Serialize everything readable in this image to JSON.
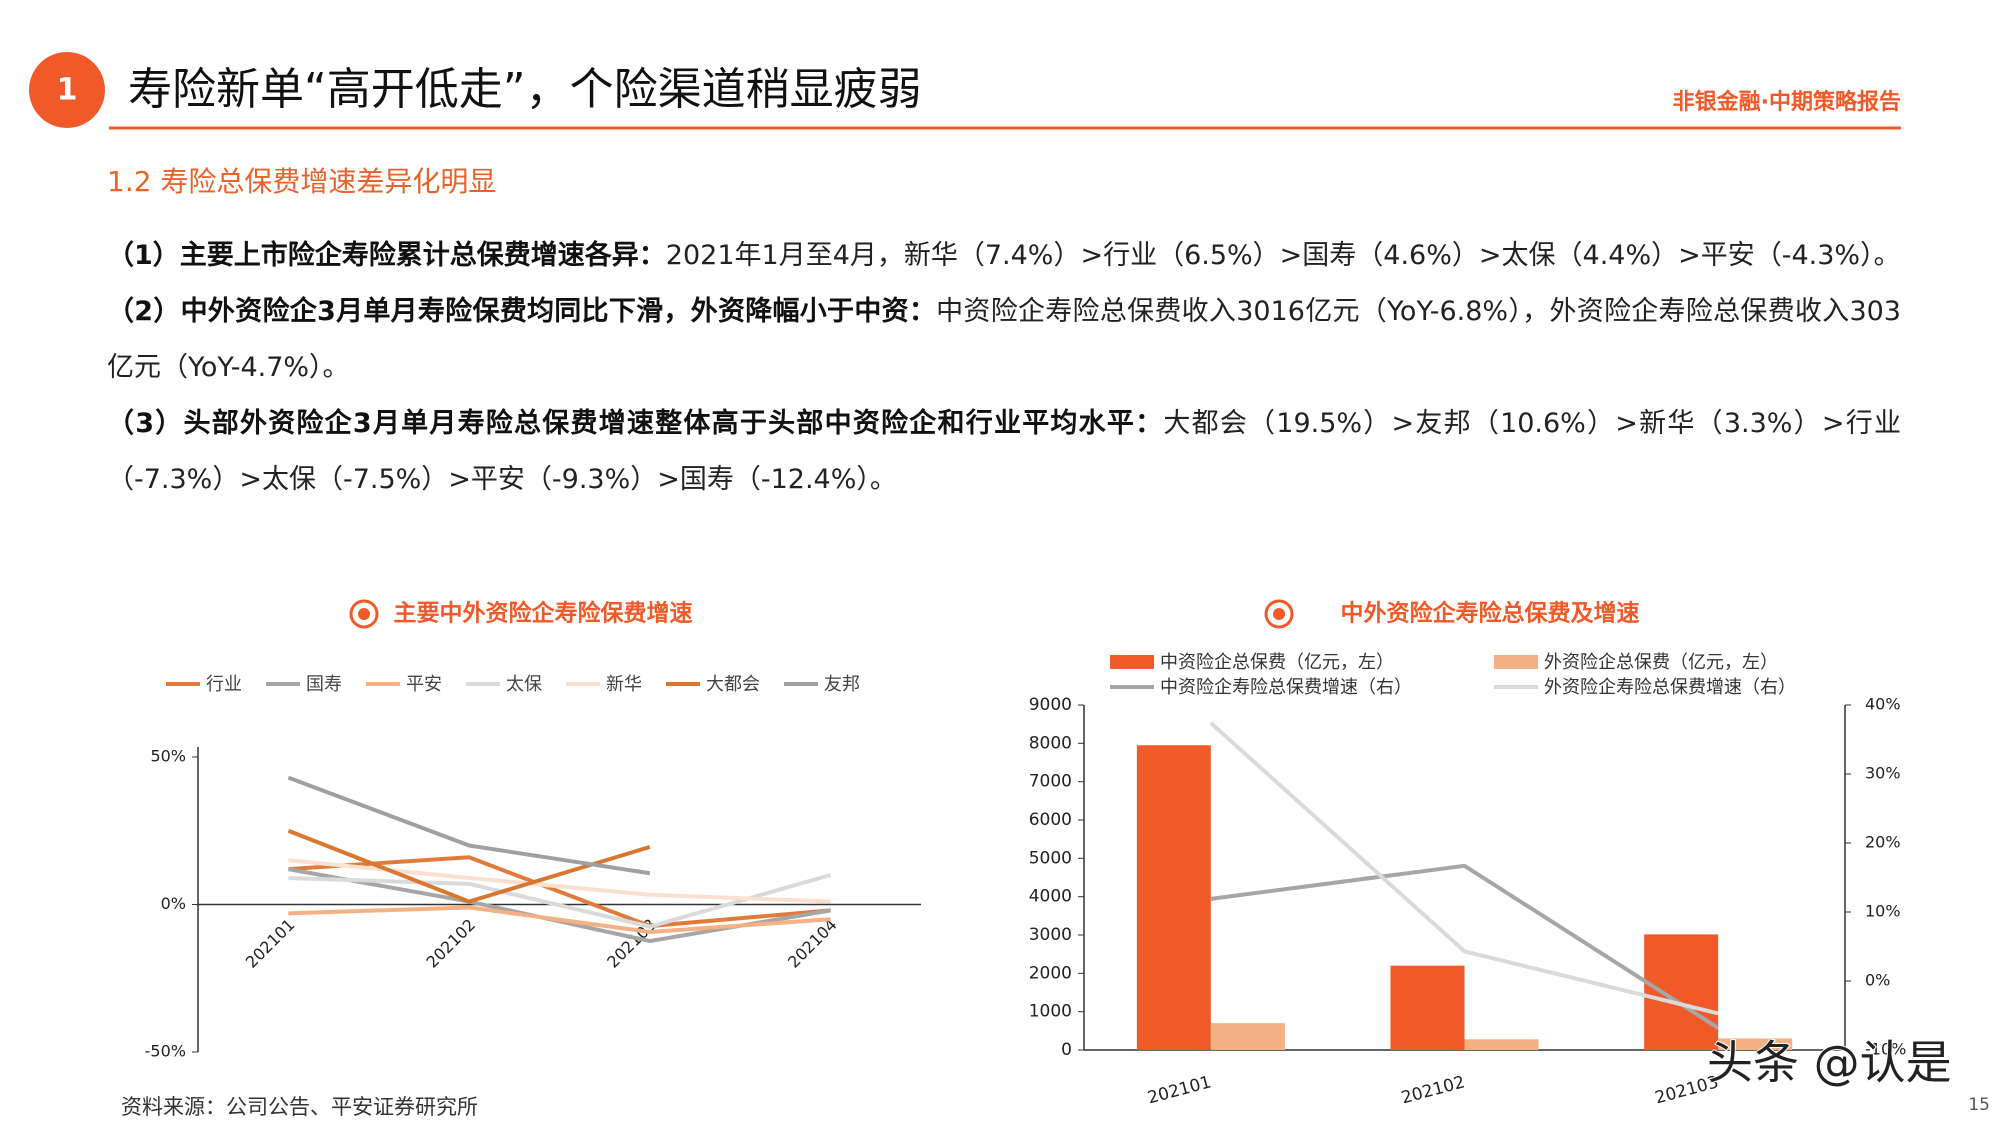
{
  "header": {
    "badge": "1",
    "title": "寿险新单“高开低走”，个险渠道稍显疲弱",
    "report": "非银金融·中期策略报告"
  },
  "section": "1.2 寿险总保费增速差异化明显",
  "paragraphs": [
    {
      "lead": "（1）主要上市险企寿险累计总保费增速各异：",
      "body": "2021年1月至4月，新华（7.4%）>行业（6.5%）>国寿（4.6%）>太保（4.4%）>平安（-4.3%）。"
    },
    {
      "lead": "（2）中外资险企3月单月寿险保费均同比下滑，外资降幅小于中资：",
      "body": "中资险企寿险总保费收入3016亿元（YoY-6.8%），外资险企寿险总保费收入303亿元（YoY-4.7%）。"
    },
    {
      "lead": "（3）头部外资险企3月单月寿险总保费增速整体高于头部中资险企和行业平均水平：",
      "body": "大都会（19.5%）>友邦（10.6%）>新华（3.3%）>行业（-7.3%）>太保（-7.5%）>平安（-9.3%）>国寿（-12.4%）。"
    }
  ],
  "chart_data": [
    {
      "type": "line",
      "title": "主要中外资险企寿险保费增速",
      "categories": [
        "202101",
        "202102",
        "202103",
        "202104"
      ],
      "series": [
        {
          "name": "行业",
          "color": "#e07b39",
          "values": [
            12,
            16,
            -7.3,
            -2
          ]
        },
        {
          "name": "国寿",
          "color": "#a6a6a6",
          "values": [
            12,
            1,
            -12.4,
            -2
          ]
        },
        {
          "name": "平安",
          "color": "#f4b183",
          "values": [
            -3,
            -1,
            -9.3,
            -5
          ]
        },
        {
          "name": "太保",
          "color": "#dadada",
          "values": [
            9,
            7,
            -7.5,
            10
          ]
        },
        {
          "name": "新华",
          "color": "#fbe0cf",
          "values": [
            15,
            9,
            3.3,
            1
          ]
        },
        {
          "name": "大都会",
          "color": "#d9772f",
          "values": [
            25,
            1,
            19.5,
            null
          ]
        },
        {
          "name": "友邦",
          "color": "#a0a0a0",
          "values": [
            43,
            20,
            10.6,
            null
          ]
        }
      ],
      "ylim": [
        -50,
        50
      ],
      "yticks": [
        {
          "value": -50,
          "label": "-50%"
        },
        {
          "value": 0,
          "label": "0%"
        },
        {
          "value": 50,
          "label": "50%"
        }
      ]
    },
    {
      "type": "combo",
      "title": "中外资险企寿险总保费及增速",
      "categories": [
        "202101",
        "202102",
        "202103"
      ],
      "series": [
        {
          "name": "中资险企总保费（亿元，左）",
          "type": "bar",
          "color": "#f05a28",
          "values": [
            7950,
            2200,
            3016
          ]
        },
        {
          "name": "外资险企总保费（亿元，左）",
          "type": "bar",
          "color": "#f4b183",
          "values": [
            700,
            280,
            303
          ]
        },
        {
          "name": "中资险企寿险总保费增速（右）",
          "type": "line",
          "axis": "y2",
          "color": "#a6a6a6",
          "values": [
            11.9,
            16.7,
            -6.8
          ]
        },
        {
          "name": "外资险企寿险总保费增速（右）",
          "type": "line",
          "axis": "y2",
          "color": "#dadada",
          "values": [
            37.4,
            4.3,
            -4.7
          ]
        }
      ],
      "ylim": [
        0,
        9000
      ],
      "yticks": [
        0,
        1000,
        2000,
        3000,
        4000,
        5000,
        6000,
        7000,
        8000,
        9000
      ],
      "y2lim": [
        -10,
        40
      ],
      "y2ticks": [
        {
          "value": -10,
          "label": "-10%"
        },
        {
          "value": 0,
          "label": "0%"
        },
        {
          "value": 10,
          "label": "10%"
        },
        {
          "value": 20,
          "label": "20%"
        },
        {
          "value": 30,
          "label": "30%"
        },
        {
          "value": 40,
          "label": "40%"
        }
      ]
    }
  ],
  "source": "资料来源：公司公告、平安证券研究所",
  "page_number": "15",
  "watermark": "头条 @认是"
}
